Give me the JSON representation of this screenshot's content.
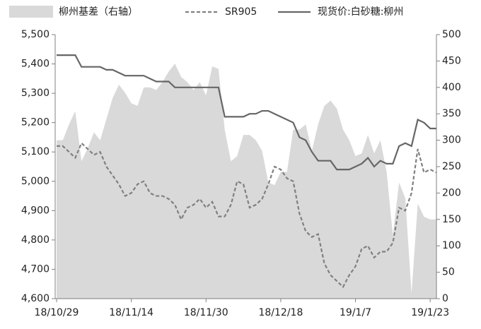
{
  "chart_data": {
    "type": "line",
    "categories": [
      "18/10/29",
      null,
      null,
      null,
      null,
      null,
      null,
      null,
      null,
      null,
      null,
      null,
      "18/11/14",
      null,
      null,
      null,
      null,
      null,
      null,
      null,
      null,
      null,
      null,
      null,
      "18/11/30",
      null,
      null,
      null,
      null,
      null,
      null,
      null,
      null,
      null,
      null,
      null,
      "18/12/18",
      null,
      null,
      null,
      null,
      null,
      null,
      null,
      null,
      null,
      null,
      null,
      "19/1/7",
      null,
      null,
      null,
      null,
      null,
      null,
      null,
      null,
      null,
      null,
      null,
      "19/1/23",
      null
    ],
    "series": [
      {
        "name": "柳州基差（右轴）",
        "type": "area",
        "axis": "y2",
        "color": "#d9d9d9",
        "values": [
          300,
          300,
          330,
          355,
          260,
          285,
          315,
          300,
          340,
          380,
          405,
          390,
          370,
          365,
          400,
          400,
          395,
          410,
          430,
          445,
          420,
          410,
          395,
          410,
          385,
          440,
          435,
          320,
          260,
          270,
          310,
          310,
          300,
          280,
          220,
          215,
          240,
          240,
          320,
          320,
          330,
          280,
          330,
          365,
          375,
          360,
          320,
          300,
          270,
          275,
          310,
          275,
          300,
          240,
          120,
          220,
          190,
          10,
          180,
          155,
          150,
          150
        ]
      },
      {
        "name": "SR905",
        "type": "line",
        "dash": true,
        "color": "#808080",
        "values": [
          5120,
          5120,
          5100,
          5080,
          5130,
          5110,
          5090,
          5100,
          5050,
          5020,
          4990,
          4950,
          4960,
          4990,
          5000,
          4960,
          4950,
          4950,
          4940,
          4920,
          4870,
          4910,
          4920,
          4940,
          4910,
          4930,
          4880,
          4880,
          4920,
          5000,
          4990,
          4910,
          4920,
          4940,
          4990,
          5050,
          5040,
          5010,
          5000,
          4890,
          4830,
          4810,
          4820,
          4720,
          4680,
          4660,
          4640,
          4680,
          4710,
          4770,
          4780,
          4740,
          4760,
          4760,
          4790,
          4910,
          4900,
          4960,
          5110,
          5030,
          5040,
          5030
        ]
      },
      {
        "name": "现货价:白砂糖:柳州",
        "type": "line",
        "dash": false,
        "color": "#666666",
        "values": [
          5430,
          5430,
          5430,
          5430,
          5390,
          5390,
          5390,
          5390,
          5380,
          5380,
          5370,
          5360,
          5360,
          5360,
          5360,
          5350,
          5340,
          5340,
          5340,
          5320,
          5320,
          5320,
          5320,
          5320,
          5320,
          5320,
          5320,
          5220,
          5220,
          5220,
          5220,
          5230,
          5230,
          5240,
          5240,
          5230,
          5220,
          5210,
          5200,
          5150,
          5140,
          5100,
          5070,
          5070,
          5070,
          5040,
          5040,
          5040,
          5050,
          5060,
          5080,
          5050,
          5070,
          5060,
          5060,
          5120,
          5130,
          5120,
          5210,
          5200,
          5180,
          5180
        ]
      }
    ],
    "ylim": [
      4600,
      5500
    ],
    "yticks": [
      {
        "value": 4600,
        "label": "4,600"
      },
      {
        "value": 4700,
        "label": "4,700"
      },
      {
        "value": 4800,
        "label": "4,800"
      },
      {
        "value": 4900,
        "label": "4,900"
      },
      {
        "value": 5000,
        "label": "5,000"
      },
      {
        "value": 5100,
        "label": "5,100"
      },
      {
        "value": 5200,
        "label": "5,200"
      },
      {
        "value": 5300,
        "label": "5,300"
      },
      {
        "value": 5400,
        "label": "5,400"
      },
      {
        "value": 5500,
        "label": "5,500"
      }
    ],
    "y2lim": [
      0,
      500
    ],
    "y2ticks": [
      0,
      50,
      100,
      150,
      200,
      250,
      300,
      350,
      400,
      450,
      500
    ],
    "grid": false,
    "legend": "top"
  }
}
